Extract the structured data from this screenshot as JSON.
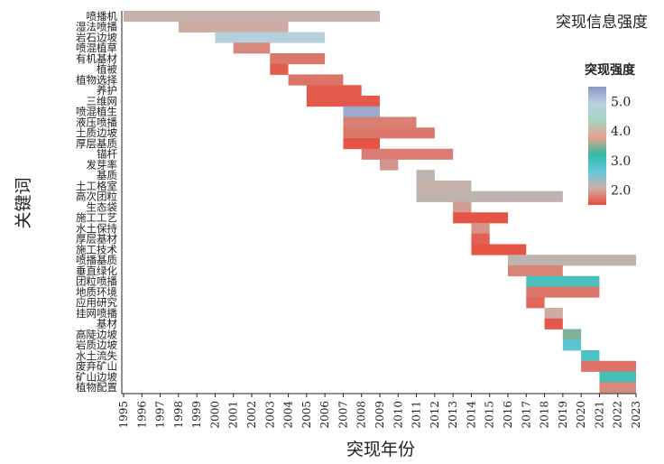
{
  "chart_data": {
    "type": "bar",
    "title": "突现信息强度",
    "xlabel": "突现年份",
    "ylabel": "关键词",
    "xlim": [
      1995,
      2023
    ],
    "x_ticks": [
      1995,
      1996,
      1997,
      1998,
      1999,
      2000,
      2001,
      2002,
      2003,
      2004,
      2005,
      2006,
      2007,
      2008,
      2009,
      2010,
      2011,
      2012,
      2013,
      2014,
      2015,
      2016,
      2017,
      2018,
      2019,
      2020,
      2021,
      2022,
      2023
    ],
    "legend": {
      "title": "突现强度",
      "ticks": [
        2.0,
        3.0,
        4.0,
        5.0
      ],
      "range": [
        1.5,
        5.5
      ],
      "colors": [
        "#e84b3c",
        "#ccb0a8",
        "#62c6dc",
        "#35bba0",
        "#e8a090",
        "#a8d4c0",
        "#b8d0e0",
        "#8d96c8"
      ],
      "placement": "right"
    },
    "series": [
      {
        "keyword": "喷播机",
        "start": 1995,
        "end": 2009,
        "strength": 2.1
      },
      {
        "keyword": "湿法喷播",
        "start": 1998,
        "end": 2004,
        "strength": 2.05
      },
      {
        "keyword": "岩石边坡",
        "start": 2000,
        "end": 2006,
        "strength": 4.85
      },
      {
        "keyword": "喷混植草",
        "start": 2001,
        "end": 2003,
        "strength": 1.85
      },
      {
        "keyword": "有机基材",
        "start": 2003,
        "end": 2006,
        "strength": 1.75
      },
      {
        "keyword": "植被",
        "start": 2003,
        "end": 2004,
        "strength": 1.6
      },
      {
        "keyword": "植物选择",
        "start": 2004,
        "end": 2007,
        "strength": 1.72
      },
      {
        "keyword": "养护",
        "start": 2005,
        "end": 2008,
        "strength": 1.6
      },
      {
        "keyword": "三维网",
        "start": 2005,
        "end": 2009,
        "strength": 1.58
      },
      {
        "keyword": "喷混植生",
        "start": 2007,
        "end": 2009,
        "strength": 5.3
      },
      {
        "keyword": "液压喷播",
        "start": 2007,
        "end": 2011,
        "strength": 1.8
      },
      {
        "keyword": "土质边坡",
        "start": 2007,
        "end": 2012,
        "strength": 1.75
      },
      {
        "keyword": "厚层基质",
        "start": 2007,
        "end": 2009,
        "strength": 1.55
      },
      {
        "keyword": "锚杆",
        "start": 2008,
        "end": 2013,
        "strength": 1.78
      },
      {
        "keyword": "发芽率",
        "start": 2009,
        "end": 2010,
        "strength": 1.92
      },
      {
        "keyword": "基质",
        "start": 2011,
        "end": 2012,
        "strength": 2.15
      },
      {
        "keyword": "土工格室",
        "start": 2011,
        "end": 2014,
        "strength": 2.1
      },
      {
        "keyword": "高次团粒",
        "start": 2011,
        "end": 2019,
        "strength": 2.15
      },
      {
        "keyword": "生态袋",
        "start": 2013,
        "end": 2014,
        "strength": 1.95
      },
      {
        "keyword": "施工工艺",
        "start": 2013,
        "end": 2016,
        "strength": 1.55
      },
      {
        "keyword": "水土保持",
        "start": 2014,
        "end": 2015,
        "strength": 1.9
      },
      {
        "keyword": "厚层基材",
        "start": 2014,
        "end": 2015,
        "strength": 1.62
      },
      {
        "keyword": "施工技术",
        "start": 2014,
        "end": 2017,
        "strength": 1.55
      },
      {
        "keyword": "喷播基质",
        "start": 2016,
        "end": 2023,
        "strength": 2.15
      },
      {
        "keyword": "垂直绿化",
        "start": 2016,
        "end": 2019,
        "strength": 1.82
      },
      {
        "keyword": "团粒喷播",
        "start": 2017,
        "end": 2021,
        "strength": 2.95
      },
      {
        "keyword": "地质环境",
        "start": 2017,
        "end": 2021,
        "strength": 1.75
      },
      {
        "keyword": "应用研究",
        "start": 2017,
        "end": 2018,
        "strength": 1.65
      },
      {
        "keyword": "挂网喷播",
        "start": 2018,
        "end": 2019,
        "strength": 2.05
      },
      {
        "keyword": "基材",
        "start": 2018,
        "end": 2019,
        "strength": 1.58
      },
      {
        "keyword": "高陡边坡",
        "start": 2019,
        "end": 2020,
        "strength": 3.45
      },
      {
        "keyword": "岩质边坡",
        "start": 2019,
        "end": 2020,
        "strength": 2.75
      },
      {
        "keyword": "水土流失",
        "start": 2020,
        "end": 2021,
        "strength": 2.9
      },
      {
        "keyword": "废弃矿山",
        "start": 2020,
        "end": 2023,
        "strength": 1.72
      },
      {
        "keyword": "矿山边坡",
        "start": 2021,
        "end": 2023,
        "strength": 3.0
      },
      {
        "keyword": "植物配置",
        "start": 2021,
        "end": 2023,
        "strength": 1.85
      }
    ]
  }
}
